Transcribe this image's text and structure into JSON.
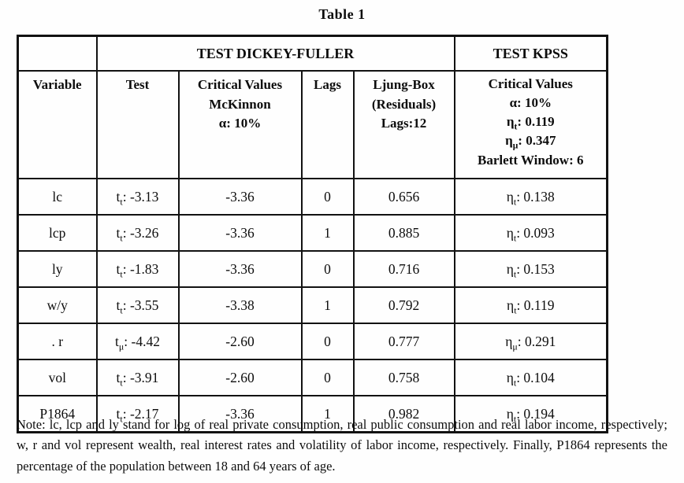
{
  "page": {
    "title": "Table 1"
  },
  "table": {
    "group_headers": {
      "dickey_fuller": "TEST DICKEY-FULLER",
      "kpss": "TEST KPSS"
    },
    "column_headers": {
      "variable": "Variable",
      "test": "Test",
      "critical_values": {
        "line1": "Critical Values",
        "line2": "McKinnon",
        "line3": "α: 10%"
      },
      "lags": "Lags",
      "ljung_box": {
        "line1": "Ljung-Box",
        "line2": "(Residuals)",
        "line3": "Lags:12"
      },
      "kpss_critical": {
        "line1": "Critical Values",
        "line2": "α: 10%",
        "line3": {
          "prefix": "η",
          "sub": "t",
          "rest": ": 0.119"
        },
        "line4": {
          "prefix": "η",
          "sub": "μ",
          "rest": ": 0.347"
        },
        "line5": "Barlett Window: 6"
      }
    },
    "rows": [
      {
        "variable": "lc",
        "test": {
          "prefix": "t",
          "sub": "t",
          "rest": ": -3.13"
        },
        "critical": "-3.36",
        "lags": "0",
        "ljung_box": "0.656",
        "kpss": {
          "prefix": "η",
          "sub": "t",
          "rest": ": 0.138"
        }
      },
      {
        "variable": "lcp",
        "test": {
          "prefix": "t",
          "sub": "t",
          "rest": ": -3.26"
        },
        "critical": "-3.36",
        "lags": "1",
        "ljung_box": "0.885",
        "kpss": {
          "prefix": "η",
          "sub": "t",
          "rest": ": 0.093"
        }
      },
      {
        "variable": "ly",
        "test": {
          "prefix": "t",
          "sub": "t",
          "rest": ": -1.83"
        },
        "critical": "-3.36",
        "lags": "0",
        "ljung_box": "0.716",
        "kpss": {
          "prefix": "η",
          "sub": "t",
          "rest": ": 0.153"
        }
      },
      {
        "variable": "w/y",
        "test": {
          "prefix": "t",
          "sub": "t",
          "rest": ": -3.55"
        },
        "critical": "-3.38",
        "lags": "1",
        "ljung_box": "0.792",
        "kpss": {
          "prefix": "η",
          "sub": "t",
          "rest": ": 0.119"
        }
      },
      {
        "variable": ". r",
        "test": {
          "prefix": "t",
          "sub": "μ",
          "rest": ": -4.42"
        },
        "critical": "-2.60",
        "lags": "0",
        "ljung_box": "0.777",
        "kpss": {
          "prefix": "η",
          "sub": "μ",
          "rest": ": 0.291"
        }
      },
      {
        "variable": "vol",
        "test": {
          "prefix": "t",
          "sub": "t",
          "rest": ": -3.91"
        },
        "critical": "-2.60",
        "lags": "0",
        "ljung_box": "0.758",
        "kpss": {
          "prefix": "η",
          "sub": "t",
          "rest": ": 0.104"
        }
      },
      {
        "variable": "P1864",
        "test": {
          "prefix": "t",
          "sub": "t",
          "rest": ": -2.17"
        },
        "critical": "-3.36",
        "lags": "1",
        "ljung_box": "0.982",
        "kpss": {
          "prefix": "η",
          "sub": "t",
          "rest": ": 0.194"
        }
      }
    ]
  },
  "note": "Note: lc, lcp and ly stand for log of real private consumption, real public consumption and real labor income, respectively; w, r and vol represent wealth, real interest rates and volatility of labor income, respectively. Finally, P1864 represents the percentage of the population between 18 and 64 years of age."
}
